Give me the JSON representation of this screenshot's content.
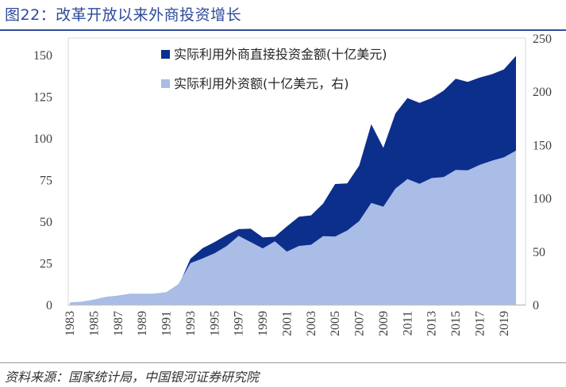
{
  "title": "图22：改革开放以来外商投资增长",
  "source": "资料来源：国家统计局，中国银河证券研究院",
  "chart_data": {
    "type": "area",
    "years": [
      1983,
      1984,
      1985,
      1986,
      1987,
      1988,
      1989,
      1990,
      1991,
      1992,
      1993,
      1994,
      1995,
      1996,
      1997,
      1998,
      1999,
      2000,
      2001,
      2002,
      2003,
      2004,
      2005,
      2006,
      2007,
      2008,
      2009,
      2010,
      2011,
      2012,
      2013,
      2014,
      2015,
      2016,
      2017,
      2018,
      2019,
      2020
    ],
    "x_tick_labels": [
      "1983",
      "1985",
      "1987",
      "1989",
      "1991",
      "1993",
      "1995",
      "1997",
      "1999",
      "2001",
      "2003",
      "2005",
      "2007",
      "2009",
      "2011",
      "2013",
      "2015",
      "2017",
      "2019"
    ],
    "series": [
      {
        "name": "实际利用外商直接投资金额(十亿美元)",
        "axis": "left",
        "color": "#0d2f8c",
        "values": [
          0.9,
          1.3,
          2.0,
          2.2,
          2.3,
          3.2,
          3.4,
          3.5,
          4.4,
          11.0,
          27.5,
          33.8,
          37.5,
          41.7,
          45.3,
          45.5,
          40.3,
          40.7,
          46.9,
          52.7,
          53.5,
          60.6,
          72.4,
          72.7,
          83.5,
          108.3,
          94.1,
          114.7,
          124.0,
          121.1,
          123.9,
          128.5,
          135.6,
          133.7,
          136.3,
          138.3,
          141.2,
          149.3
        ]
      },
      {
        "name": "实际利用外资额(十亿美元，右)",
        "axis": "right",
        "color": "#a9bde6",
        "values": [
          2.0,
          2.7,
          4.6,
          7.3,
          8.5,
          10.2,
          10.1,
          10.3,
          11.6,
          19.2,
          38.9,
          43.2,
          48.1,
          54.8,
          64.4,
          58.6,
          52.7,
          59.4,
          49.7,
          55.0,
          56.1,
          64.1,
          63.8,
          69.5,
          78.3,
          95.3,
          91.8,
          108.8,
          117.7,
          113.3,
          118.7,
          119.6,
          126.3,
          126.0,
          131.0,
          135.0,
          138.1,
          144.4
        ]
      }
    ],
    "y_left": {
      "min": 0,
      "max": 160,
      "ticks": [
        0,
        25,
        50,
        75,
        100,
        125,
        150
      ]
    },
    "y_right": {
      "min": 0,
      "max": 250,
      "ticks": [
        0,
        50,
        100,
        150,
        200,
        250
      ]
    },
    "left_tick_labels": [
      "0",
      "25",
      "50",
      "75",
      "100",
      "125",
      "150"
    ],
    "right_tick_labels": [
      "0",
      "50",
      "100",
      "150",
      "200",
      "250"
    ],
    "legend_position": "top-center",
    "grid": false
  }
}
